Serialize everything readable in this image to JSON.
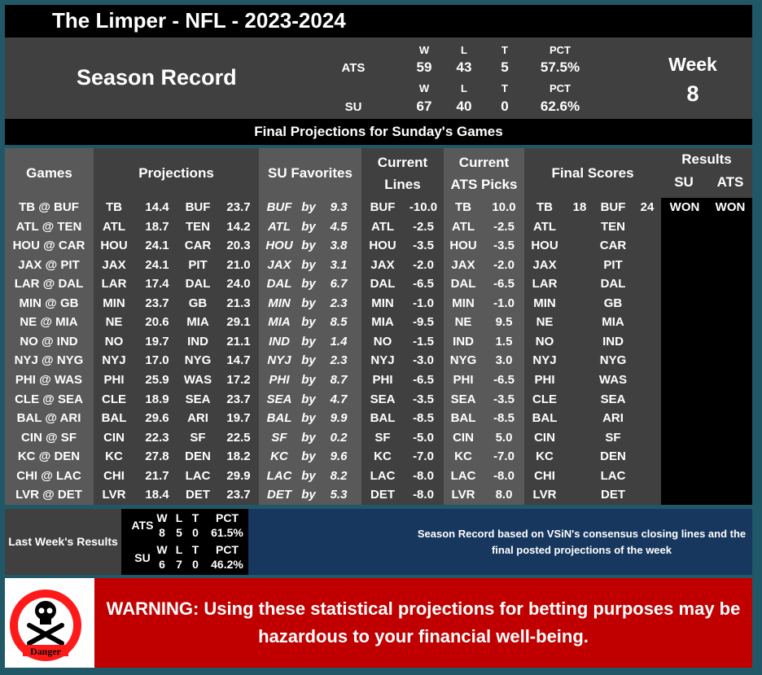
{
  "title": "The Limper - NFL - 2023-2024",
  "season": {
    "label": "Season Record",
    "week_label": "Week",
    "week": "8",
    "ats": {
      "label": "ATS",
      "w_h": "W",
      "l_h": "L",
      "t_h": "T",
      "pct_h": "PCT",
      "w": "59",
      "l": "43",
      "t": "5",
      "pct": "57.5%"
    },
    "su": {
      "label": "SU",
      "w_h": "W",
      "l_h": "L",
      "t_h": "T",
      "pct_h": "PCT",
      "w": "67",
      "l": "40",
      "t": "0",
      "pct": "62.6%"
    }
  },
  "subtitle": "Final Projections for Sunday's Games",
  "headers": {
    "games": "Games",
    "projections": "Projections",
    "su_favorites": "SU Favorites",
    "lines_1": "Current",
    "lines_2": "Lines",
    "picks_1": "Current",
    "picks_2": "ATS Picks",
    "final": "Final Scores",
    "results": "Results",
    "su": "SU",
    "ats": "ATS"
  },
  "games": [
    [
      "TB @ BUF",
      "TB",
      "14.4",
      "BUF",
      "23.7",
      "BUF",
      "by",
      "9.3",
      "BUF",
      "-10.0",
      "TB",
      "10.0",
      "TB",
      "18",
      "BUF",
      "24",
      "WON",
      "WON"
    ],
    [
      "ATL @ TEN",
      "ATL",
      "18.7",
      "TEN",
      "14.2",
      "ATL",
      "by",
      "4.5",
      "ATL",
      "-2.5",
      "ATL",
      "-2.5",
      "ATL",
      "",
      "TEN",
      "",
      "",
      ""
    ],
    [
      "HOU @ CAR",
      "HOU",
      "24.1",
      "CAR",
      "20.3",
      "HOU",
      "by",
      "3.8",
      "HOU",
      "-3.5",
      "HOU",
      "-3.5",
      "HOU",
      "",
      "CAR",
      "",
      "",
      ""
    ],
    [
      "JAX @ PIT",
      "JAX",
      "24.1",
      "PIT",
      "21.0",
      "JAX",
      "by",
      "3.1",
      "JAX",
      "-2.0",
      "JAX",
      "-2.0",
      "JAX",
      "",
      "PIT",
      "",
      "",
      ""
    ],
    [
      "LAR @ DAL",
      "LAR",
      "17.4",
      "DAL",
      "24.0",
      "DAL",
      "by",
      "6.7",
      "DAL",
      "-6.5",
      "DAL",
      "-6.5",
      "LAR",
      "",
      "DAL",
      "",
      "",
      ""
    ],
    [
      "MIN @ GB",
      "MIN",
      "23.7",
      "GB",
      "21.3",
      "MIN",
      "by",
      "2.3",
      "MIN",
      "-1.0",
      "MIN",
      "-1.0",
      "MIN",
      "",
      "GB",
      "",
      "",
      ""
    ],
    [
      "NE @ MIA",
      "NE",
      "20.6",
      "MIA",
      "29.1",
      "MIA",
      "by",
      "8.5",
      "MIA",
      "-9.5",
      "NE",
      "9.5",
      "NE",
      "",
      "MIA",
      "",
      "",
      ""
    ],
    [
      "NO @ IND",
      "NO",
      "19.7",
      "IND",
      "21.1",
      "IND",
      "by",
      "1.4",
      "NO",
      "-1.5",
      "IND",
      "1.5",
      "NO",
      "",
      "IND",
      "",
      "",
      ""
    ],
    [
      "NYJ @ NYG",
      "NYJ",
      "17.0",
      "NYG",
      "14.7",
      "NYJ",
      "by",
      "2.3",
      "NYJ",
      "-3.0",
      "NYG",
      "3.0",
      "NYJ",
      "",
      "NYG",
      "",
      "",
      ""
    ],
    [
      "PHI @ WAS",
      "PHI",
      "25.9",
      "WAS",
      "17.2",
      "PHI",
      "by",
      "8.7",
      "PHI",
      "-6.5",
      "PHI",
      "-6.5",
      "PHI",
      "",
      "WAS",
      "",
      "",
      ""
    ],
    [
      "CLE @ SEA",
      "CLE",
      "18.9",
      "SEA",
      "23.7",
      "SEA",
      "by",
      "4.7",
      "SEA",
      "-3.5",
      "SEA",
      "-3.5",
      "CLE",
      "",
      "SEA",
      "",
      "",
      ""
    ],
    [
      "BAL @ ARI",
      "BAL",
      "29.6",
      "ARI",
      "19.7",
      "BAL",
      "by",
      "9.9",
      "BAL",
      "-8.5",
      "BAL",
      "-8.5",
      "BAL",
      "",
      "ARI",
      "",
      "",
      ""
    ],
    [
      "CIN @ SF",
      "CIN",
      "22.3",
      "SF",
      "22.5",
      "SF",
      "by",
      "0.2",
      "SF",
      "-5.0",
      "CIN",
      "5.0",
      "CIN",
      "",
      "SF",
      "",
      "",
      ""
    ],
    [
      "KC @ DEN",
      "KC",
      "27.8",
      "DEN",
      "18.2",
      "KC",
      "by",
      "9.6",
      "KC",
      "-7.0",
      "KC",
      "-7.0",
      "KC",
      "",
      "DEN",
      "",
      "",
      ""
    ],
    [
      "CHI @ LAC",
      "CHI",
      "21.7",
      "LAC",
      "29.9",
      "LAC",
      "by",
      "8.2",
      "LAC",
      "-8.0",
      "LAC",
      "-8.0",
      "CHI",
      "",
      "LAC",
      "",
      "",
      ""
    ],
    [
      "LVR @ DET",
      "LVR",
      "18.4",
      "DET",
      "23.7",
      "DET",
      "by",
      "5.3",
      "DET",
      "-8.0",
      "LVR",
      "8.0",
      "LVR",
      "",
      "DET",
      "",
      "",
      ""
    ]
  ],
  "last_week": {
    "label": "Last Week's Results",
    "ats": {
      "label": "ATS",
      "w_h": "W",
      "l_h": "L",
      "t_h": "T",
      "pct_h": "PCT",
      "w": "8",
      "l": "5",
      "t": "0",
      "pct": "61.5%"
    },
    "su": {
      "label": "SU",
      "w_h": "W",
      "l_h": "L",
      "t_h": "T",
      "pct_h": "PCT",
      "w": "6",
      "l": "7",
      "t": "0",
      "pct": "46.2%"
    },
    "note": "Season Record based on VSiN's consensus closing lines and the final posted projections of the week"
  },
  "warning": {
    "text": "WARNING: Using these statistical projections for betting purposes may be hazardous to your financial well-being.",
    "icon_label": "Danger",
    "icon": "skull-crossbones-danger-icon"
  },
  "colors": {
    "frame": "#215868",
    "dark_gray": "#404040",
    "mid_gray": "#595959",
    "navy": "#17375e",
    "red": "#c00000"
  }
}
